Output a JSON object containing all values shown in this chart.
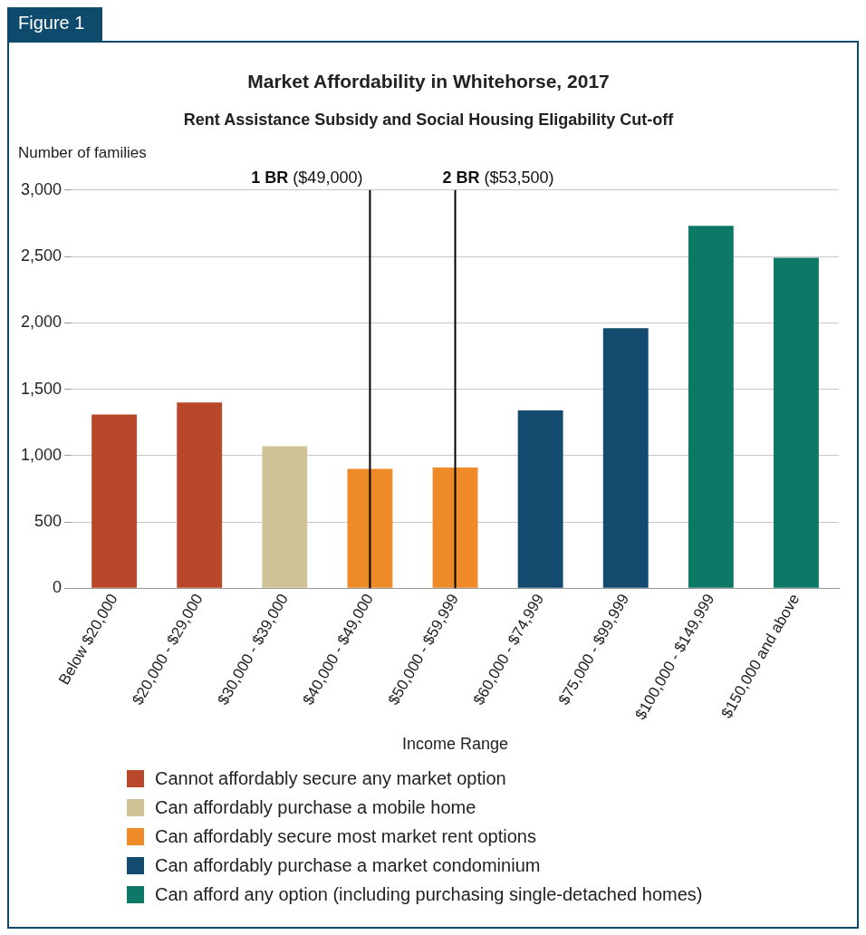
{
  "chart_data": {
    "type": "bar",
    "title": "Market Affordability in Whitehorse, 2017",
    "subtitle": "Rent Assistance Subsidy and Social Housing Eligability Cut-off",
    "xlabel": "Income Range",
    "ylabel": "Number of families",
    "categories": [
      "Below $20,000",
      "$20,000 - $29,000",
      "$30,000 - $39,000",
      "$40,000 - $49,000",
      "$50,000 - $59,999",
      "$60,000 - $74,999",
      "$75,000 - $99,999",
      "$100,000 - $149,999",
      "$150,000 and above"
    ],
    "series": [
      {
        "name": "Cannot affordably secure any market option",
        "color": "#b9482a",
        "values": [
          1310,
          1400,
          null,
          null,
          null,
          null,
          null,
          null,
          null
        ]
      },
      {
        "name": "Can affordably purchase a mobile home",
        "color": "#cfc497",
        "values": [
          null,
          null,
          1070,
          null,
          null,
          null,
          null,
          null,
          null
        ]
      },
      {
        "name": "Can affordably secure most market rent options",
        "color": "#ee8a27",
        "values": [
          null,
          null,
          null,
          900,
          910,
          null,
          null,
          null,
          null
        ]
      },
      {
        "name": "Can affordably purchase a market condominium",
        "color": "#124b6e",
        "values": [
          null,
          null,
          null,
          null,
          null,
          1340,
          1960,
          null,
          null
        ]
      },
      {
        "name": "Can afford any option (including purchasing single-detached homes)",
        "color": "#0e7866",
        "values": [
          null,
          null,
          null,
          null,
          null,
          null,
          null,
          2730,
          2490
        ]
      }
    ],
    "ylim": [
      0,
      3000
    ],
    "yticks": [
      0,
      {
        "value": 500,
        "label": "500"
      },
      {
        "value": 1000,
        "label": "1,000"
      },
      {
        "value": 1500,
        "label": "1,500"
      },
      {
        "value": 2000,
        "label": "2,000"
      },
      {
        "value": 2500,
        "label": "2,500"
      },
      {
        "value": 3000,
        "label": "3,000"
      }
    ],
    "grid": "y",
    "legend": "bottom",
    "ref_lines": [
      {
        "axis": "x",
        "value": "$40,000 - $49,000",
        "label": "1 BR ($49,000)",
        "color": "#000000"
      },
      {
        "axis": "x",
        "value": "$50,000 - $59,999",
        "label": "2 BR ($53,500)",
        "color": "#000000"
      }
    ],
    "annotations": [
      "Figure 1"
    ]
  }
}
